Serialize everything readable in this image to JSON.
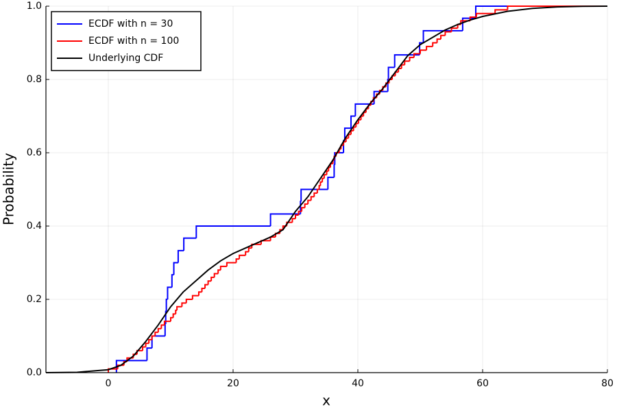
{
  "chart_data": {
    "type": "step",
    "xlabel": "x",
    "ylabel": "Probability",
    "xlim": [
      -10,
      80
    ],
    "ylim": [
      0,
      1
    ],
    "xticks": [
      0,
      20,
      40,
      60,
      80
    ],
    "yticks": [
      {
        "value": 0,
        "label": "0.0"
      },
      0.2,
      0.4,
      0.6,
      0.8,
      {
        "value": 1,
        "label": "1.0"
      }
    ],
    "grid": true,
    "legend": "top-left",
    "series": [
      {
        "name": "ECDF with n = 30",
        "color": "#0000ff",
        "type": "step",
        "x": [
          1.3,
          6.2,
          7.0,
          9.1,
          9.2,
          9.3,
          9.5,
          10.2,
          10.5,
          11.2,
          12.1,
          14.1,
          26.0,
          30.8,
          30.9,
          35.2,
          36.2,
          36.3,
          37.7,
          37.9,
          38.9,
          39.6,
          42.6,
          44.8,
          44.9,
          45.9,
          49.9,
          50.5,
          56.8,
          58.9
        ],
        "values": [
          0.033,
          0.067,
          0.1,
          0.133,
          0.167,
          0.2,
          0.233,
          0.267,
          0.3,
          0.333,
          0.367,
          0.4,
          0.433,
          0.467,
          0.5,
          0.533,
          0.567,
          0.6,
          0.633,
          0.667,
          0.7,
          0.733,
          0.767,
          0.8,
          0.833,
          0.867,
          0.9,
          0.933,
          0.967,
          1.0
        ]
      },
      {
        "name": "ECDF with n = 100",
        "color": "#ff0000",
        "type": "step",
        "x": [
          0,
          1.5,
          2.5,
          3,
          4,
          4.6,
          5.5,
          6,
          6.5,
          7,
          7.5,
          8,
          8.5,
          9,
          10,
          10.4,
          10.8,
          11,
          11.8,
          12.5,
          13.5,
          14.5,
          15,
          15.5,
          16,
          16.5,
          17,
          17.6,
          18,
          19,
          20.5,
          21,
          22,
          22.5,
          23,
          24.5,
          26,
          26.8,
          27.5,
          28,
          28.6,
          29.5,
          30,
          30.5,
          31,
          31.5,
          32,
          32.5,
          33,
          33.5,
          33.8,
          34,
          34.3,
          34.6,
          35,
          35.3,
          35.6,
          36,
          36.2,
          36.5,
          37,
          37.3,
          37.7,
          38.1,
          38.5,
          38.9,
          39.3,
          39.7,
          40.1,
          40.5,
          40.9,
          41.3,
          41.7,
          42.1,
          42.5,
          43,
          43.5,
          44,
          44.5,
          45,
          45.5,
          46,
          46.5,
          47,
          47.5,
          48.3,
          49,
          50,
          51,
          52,
          52.7,
          53.3,
          54,
          55,
          56,
          56.5,
          58,
          59,
          62,
          64
        ],
        "values": [
          0.01,
          0.02,
          0.03,
          0.04,
          0.05,
          0.06,
          0.07,
          0.08,
          0.09,
          0.1,
          0.11,
          0.12,
          0.13,
          0.14,
          0.15,
          0.16,
          0.17,
          0.18,
          0.19,
          0.2,
          0.21,
          0.22,
          0.23,
          0.24,
          0.25,
          0.26,
          0.27,
          0.28,
          0.29,
          0.3,
          0.31,
          0.32,
          0.33,
          0.34,
          0.35,
          0.36,
          0.37,
          0.38,
          0.39,
          0.4,
          0.41,
          0.42,
          0.43,
          0.44,
          0.45,
          0.46,
          0.47,
          0.48,
          0.49,
          0.5,
          0.51,
          0.52,
          0.53,
          0.54,
          0.55,
          0.56,
          0.57,
          0.58,
          0.59,
          0.6,
          0.61,
          0.62,
          0.63,
          0.64,
          0.65,
          0.66,
          0.67,
          0.68,
          0.69,
          0.7,
          0.71,
          0.72,
          0.73,
          0.74,
          0.75,
          0.76,
          0.77,
          0.78,
          0.79,
          0.8,
          0.81,
          0.82,
          0.83,
          0.84,
          0.85,
          0.86,
          0.87,
          0.88,
          0.89,
          0.9,
          0.91,
          0.92,
          0.93,
          0.94,
          0.95,
          0.96,
          0.97,
          0.98,
          0.99,
          1.0
        ]
      },
      {
        "name": "Underlying CDF",
        "color": "#000000",
        "type": "line",
        "x": [
          -10,
          -5,
          0,
          2,
          4,
          6,
          8,
          10,
          12,
          14,
          16,
          18,
          20,
          22,
          24,
          26,
          28,
          30,
          32,
          34,
          36,
          38,
          40,
          42,
          44,
          46,
          48,
          50,
          52,
          54,
          56,
          58,
          60,
          64,
          68,
          72,
          76,
          80
        ],
        "values": [
          0,
          0.001,
          0.008,
          0.02,
          0.045,
          0.085,
          0.13,
          0.18,
          0.22,
          0.25,
          0.28,
          0.305,
          0.325,
          0.34,
          0.355,
          0.37,
          0.39,
          0.44,
          0.48,
          0.53,
          0.58,
          0.64,
          0.69,
          0.735,
          0.775,
          0.82,
          0.865,
          0.895,
          0.915,
          0.935,
          0.95,
          0.962,
          0.972,
          0.986,
          0.994,
          0.998,
          0.9995,
          1.0
        ]
      }
    ]
  }
}
